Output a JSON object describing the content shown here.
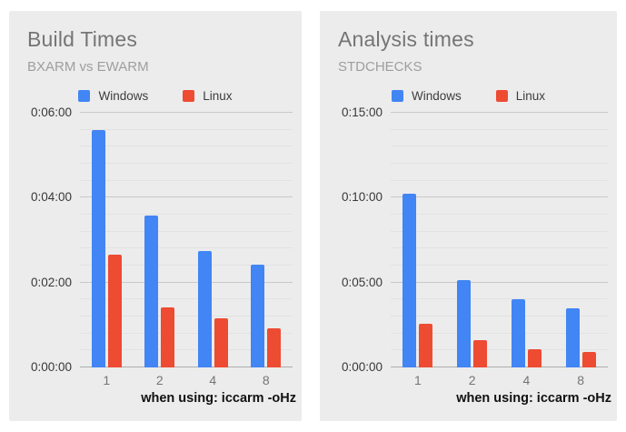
{
  "colors": {
    "page_background": "#FFFFFF",
    "panel_background": "#ECECEC",
    "windows": "#4285F4",
    "linux": "#EE4B33",
    "title_text": "#757575",
    "subtitle_text": "#9E9E9E",
    "gridline_major": "#C9C9C9",
    "gridline_minor": "#E2E2E2",
    "axis_baseline": "#ADADAD"
  },
  "chart_data": [
    {
      "type": "bar",
      "title": "Build Times",
      "subtitle": "BXARM vs EWARM",
      "caption": "when using: iccarm -oHz",
      "categories": [
        "1",
        "2",
        "4",
        "8"
      ],
      "series": [
        {
          "name": "Windows",
          "color_key": "windows",
          "values_hms": [
            "0:05:35",
            "0:03:35",
            "0:02:45",
            "0:02:25"
          ],
          "values_seconds": [
            335,
            215,
            165,
            145
          ]
        },
        {
          "name": "Linux",
          "color_key": "linux",
          "values_hms": [
            "0:02:40",
            "0:01:25",
            "0:01:10",
            "0:00:55"
          ],
          "values_seconds": [
            160,
            85,
            70,
            55
          ]
        }
      ],
      "ylim_seconds": [
        0,
        360
      ],
      "y_major_step_seconds": 120,
      "y_minor_step_seconds": 24,
      "y_tick_labels": [
        "0:00:00",
        "0:02:00",
        "0:04:00",
        "0:06:00"
      ],
      "legend_position": "top",
      "grid": true
    },
    {
      "type": "bar",
      "title": "Analysis times",
      "subtitle": "STDCHECKS",
      "caption": "when using: iccarm -oHz",
      "categories": [
        "1",
        "2",
        "4",
        "8"
      ],
      "series": [
        {
          "name": "Windows",
          "color_key": "windows",
          "values_hms": [
            "0:10:15",
            "0:05:10",
            "0:04:00",
            "0:03:30"
          ],
          "values_seconds": [
            615,
            310,
            240,
            210
          ]
        },
        {
          "name": "Linux",
          "color_key": "linux",
          "values_hms": [
            "0:02:35",
            "0:01:35",
            "0:01:05",
            "0:00:55"
          ],
          "values_seconds": [
            155,
            95,
            65,
            55
          ]
        }
      ],
      "ylim_seconds": [
        0,
        900
      ],
      "y_major_step_seconds": 300,
      "y_minor_step_seconds": 60,
      "y_tick_labels": [
        "0:00:00",
        "0:05:00",
        "0:10:00",
        "0:15:00"
      ],
      "legend_position": "top",
      "grid": true
    }
  ]
}
